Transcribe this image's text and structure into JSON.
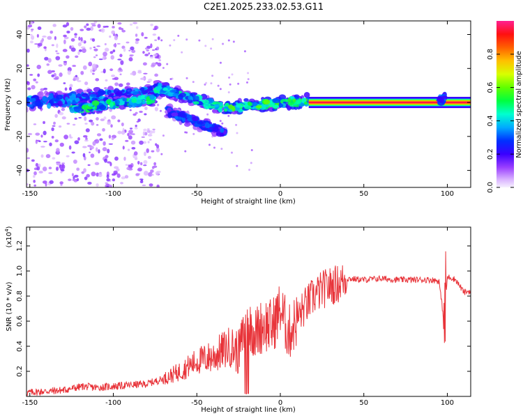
{
  "title": "C2E1.2025.233.02.53.G11",
  "chart_data": [
    {
      "type": "heatmap",
      "name": "spectrogram",
      "xlabel": "Height of straight line (km)",
      "ylabel": "Frequency (Hz)",
      "xlim": [
        -152,
        114
      ],
      "ylim": [
        -50,
        48
      ],
      "xticks": [
        "-150",
        "-100",
        "-50",
        "0",
        "50",
        "100"
      ],
      "xtick_values": [
        -150,
        -100,
        -50,
        0,
        50,
        100
      ],
      "yticks": [
        "-40",
        "-20",
        "0",
        "20",
        "40"
      ],
      "ytick_values": [
        -40,
        -20,
        0,
        20,
        40
      ],
      "colorbar": {
        "label": "Normalized spectral amplitude",
        "range": [
          0,
          1
        ],
        "ticks": [
          "0.0",
          "0.2",
          "0.4",
          "0.6",
          "0.8"
        ],
        "tick_values": [
          0.0,
          0.2,
          0.4,
          0.6,
          0.8
        ]
      },
      "features": [
        {
          "name": "noisy-band",
          "x": [
            -152,
            -72
          ],
          "freq": [
            0,
            6
          ],
          "amplitude": 0.35
        },
        {
          "name": "main-drift",
          "x": [
            -125,
            -75
          ],
          "freq": [
            -4,
            2
          ],
          "amplitude": 0.5
        },
        {
          "name": "upper-branch",
          "x": [
            -75,
            -35
          ],
          "freq": [
            9,
            -3
          ],
          "amplitude": 0.45
        },
        {
          "name": "lower-branch",
          "x": [
            -68,
            -33
          ],
          "freq": [
            -5,
            -18
          ],
          "amplitude": 0.3
        },
        {
          "name": "convergence",
          "x": [
            -33,
            17
          ],
          "freq": [
            -3,
            1
          ],
          "amplitude": 0.55
        },
        {
          "name": "steady-line",
          "x": [
            17,
            114
          ],
          "freq": [
            0,
            0
          ],
          "amplitude": 1.0
        }
      ]
    },
    {
      "type": "line",
      "name": "snr",
      "xlabel": "Height of straight line (km)",
      "ylabel": "SNR (10 * v/v)",
      "yscale_label": "(x10",
      "yscale_exp": "4",
      "xlim": [
        -152,
        114
      ],
      "ylim": [
        0,
        1.35
      ],
      "xticks": [
        "-150",
        "-100",
        "-50",
        "0",
        "50",
        "100"
      ],
      "xtick_values": [
        -150,
        -100,
        -50,
        0,
        50,
        100
      ],
      "yticks": [
        "0.2",
        "0.4",
        "0.6",
        "0.8",
        "1.0",
        "1.2"
      ],
      "ytick_values": [
        0.2,
        0.4,
        0.6,
        0.8,
        1.0,
        1.2
      ],
      "color": "#e8343a",
      "series": [
        {
          "name": "SNR",
          "x": [
            -152,
            -130,
            -118,
            -110,
            -90,
            -80,
            -70,
            -60,
            -50,
            -40,
            -30,
            -25,
            -20,
            -15,
            -10,
            -5,
            0,
            5,
            10,
            15,
            20,
            25,
            30,
            35,
            40,
            50,
            60,
            70,
            80,
            90,
            95,
            98,
            99,
            100,
            102,
            105,
            110,
            114
          ],
          "values": [
            0.03,
            0.05,
            0.08,
            0.07,
            0.09,
            0.1,
            0.14,
            0.2,
            0.28,
            0.32,
            0.4,
            0.35,
            0.6,
            0.5,
            0.58,
            0.55,
            0.7,
            0.5,
            0.62,
            0.72,
            0.8,
            0.85,
            0.88,
            0.9,
            0.94,
            0.93,
            0.94,
            0.93,
            0.93,
            0.93,
            0.92,
            0.6,
            0.75,
            0.95,
            0.95,
            0.93,
            0.83,
            0.84
          ]
        }
      ]
    }
  ]
}
